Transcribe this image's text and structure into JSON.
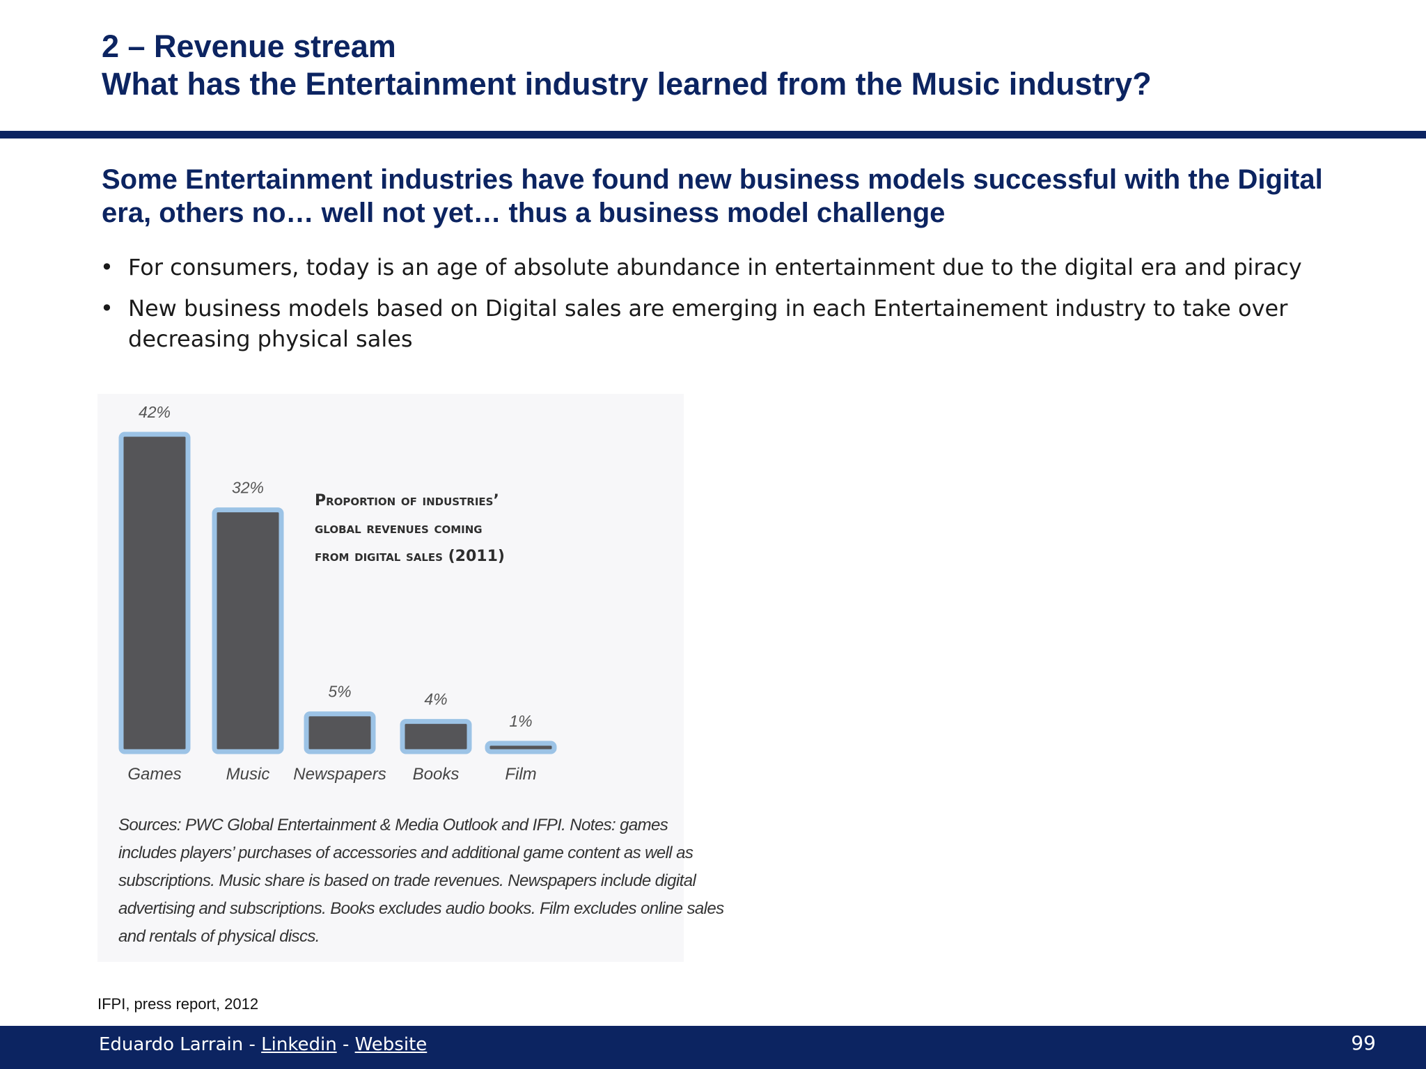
{
  "header": {
    "title_line1": "2 – Revenue stream",
    "title_line2": "What has the Entertainment industry learned from the Music industry?"
  },
  "subtitle": {
    "line1": "Some Entertainment industries have found new business models successful with the Digital",
    "line2": "era, others no… well not yet… thus a business model challenge"
  },
  "bullets": [
    {
      "marker": "•",
      "text": "For consumers, today is an age of absolute abundance in entertainment due to the digital era and piracy"
    },
    {
      "marker": "•",
      "text": "New business models based on Digital sales are emerging in each Entertainement industry to take over decreasing physical sales"
    }
  ],
  "chart_data": {
    "type": "bar",
    "title_lines": [
      "Proportion of industries’",
      "global revenues coming",
      "from digital sales (2011)"
    ],
    "categories": [
      "Games",
      "Music",
      "Newspapers",
      "Books",
      "Film"
    ],
    "values": [
      42,
      32,
      5,
      4,
      1
    ],
    "value_labels": [
      "42%",
      "32%",
      "5%",
      "4%",
      "1%"
    ],
    "unit": "%",
    "ylim": [
      0,
      42
    ],
    "grid": false,
    "bar_fill": "#555558",
    "bar_outline": "#9cc3e6",
    "notes_lines": [
      "Sources: PWC Global Entertainment & Media Outlook and IFPI. Notes: games",
      "includes players’ purchases of accessories and additional game content as well as",
      "subscriptions. Music share is based on trade revenues. Newspapers include digital",
      "advertising and subscriptions. Books excludes audio books. Film excludes online sales",
      "and rentals of physical discs."
    ]
  },
  "source": "IFPI, press report, 2012",
  "footer": {
    "author": "Eduardo Larrain",
    "separator": "-",
    "link1": "Linkedin",
    "link2": "Website",
    "page_number": "99"
  },
  "colors": {
    "primary": "#0c2461",
    "chart_background": "#f7f7f9"
  }
}
